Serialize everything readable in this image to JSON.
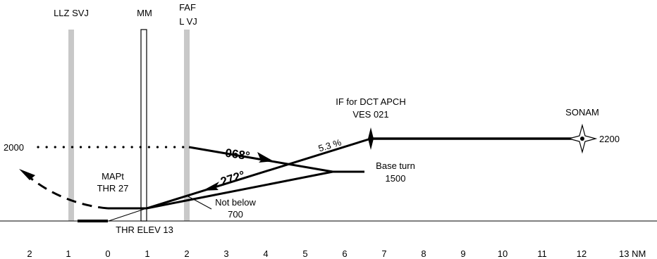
{
  "fixes": {
    "llz": "LLZ SVJ",
    "mm": "MM",
    "faf_line1": "FAF",
    "faf_line2": "L VJ",
    "if_line1": "IF for DCT APCH",
    "if_line2": "VES 021",
    "sonam": "SONAM"
  },
  "altitudes": {
    "left_2000": "2000",
    "right_2200": "2200"
  },
  "labels": {
    "mapt_line1": "MAPt",
    "mapt_line2": "THR 27",
    "base_turn_line1": "Base turn",
    "base_turn_line2": "1500",
    "not_below_line1": "Not below",
    "not_below_line2": "700",
    "thr_elev": "THR ELEV 13",
    "gradient": "5.3 %",
    "outbound_course": "068°",
    "inbound_course": "272°"
  },
  "distance_axis": {
    "ticks": [
      "2",
      "1",
      "0",
      "1",
      "2",
      "3",
      "4",
      "5",
      "6",
      "7",
      "8",
      "9",
      "10",
      "11",
      "12",
      "13 NM"
    ]
  }
}
